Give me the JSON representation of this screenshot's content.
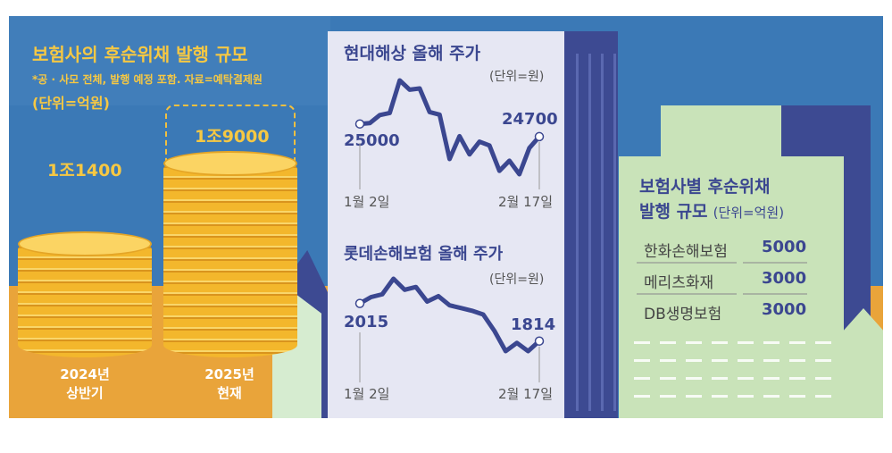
{
  "left_chart": {
    "title": "보험사의 후순위채 발행 규모",
    "note": "*공 · 사모 전체, 발행 예정 포함. 자료=예탁결제원",
    "unit": "(단위=억원)"
  },
  "stock1": {
    "title": "현대해상 올해 주가",
    "unit": "(단위=원)",
    "start_label": "25000",
    "end_label": "24700",
    "start_date": "1월 2일",
    "end_date": "2월 17일"
  },
  "stock2": {
    "title": "롯데손해보험 올해 주가",
    "unit": "(단위=원)",
    "start_label": "2015",
    "end_label": "1814",
    "start_date": "1월 2일",
    "end_date": "2월 17일"
  },
  "table": {
    "title1": "보험사별 후순위채",
    "title2": "발행 규모",
    "unit": "(단위=억원)",
    "rows": [
      {
        "name": "한화손해보험",
        "value": "5000"
      },
      {
        "name": "메리츠화재",
        "value": "3000"
      },
      {
        "name": "DB생명보험",
        "value": "3000"
      }
    ]
  },
  "colors": {
    "sky": "#3b79b6",
    "gold": "#f6c843",
    "navy": "#3b4790",
    "panel": "#e6e7f3",
    "green": "#c9e3b9"
  },
  "chart_data": [
    {
      "type": "bar",
      "title": "보험사의 후순위채 발행 규모",
      "ylabel": "억원",
      "categories": [
        "2024년 상반기",
        "2025년 현재"
      ],
      "category_lines": [
        [
          "2024년",
          "상반기"
        ],
        [
          "2025년",
          "현재"
        ]
      ],
      "values": [
        11400,
        19000
      ],
      "data_labels": [
        "1조1400",
        "1조9000"
      ]
    },
    {
      "type": "line",
      "title": "현대해상 올해 주가",
      "ylabel": "원",
      "x_range": [
        "1월 2일",
        "2월 17일"
      ],
      "values": [
        25000,
        25020,
        25210,
        25260,
        26030,
        25810,
        25840,
        25280,
        25220,
        24170,
        24710,
        24280,
        24580,
        24490,
        23890,
        24130,
        23810,
        24430,
        24700
      ]
    },
    {
      "type": "line",
      "title": "롯데손해보험 올해 주가",
      "ylabel": "원",
      "x_range": [
        "1월 2일",
        "2월 17일"
      ],
      "values": [
        2015,
        2049,
        2064,
        2147,
        2088,
        2103,
        2025,
        2054,
        2005,
        1991,
        1976,
        1956,
        1868,
        1760,
        1804,
        1760,
        1814
      ]
    }
  ]
}
